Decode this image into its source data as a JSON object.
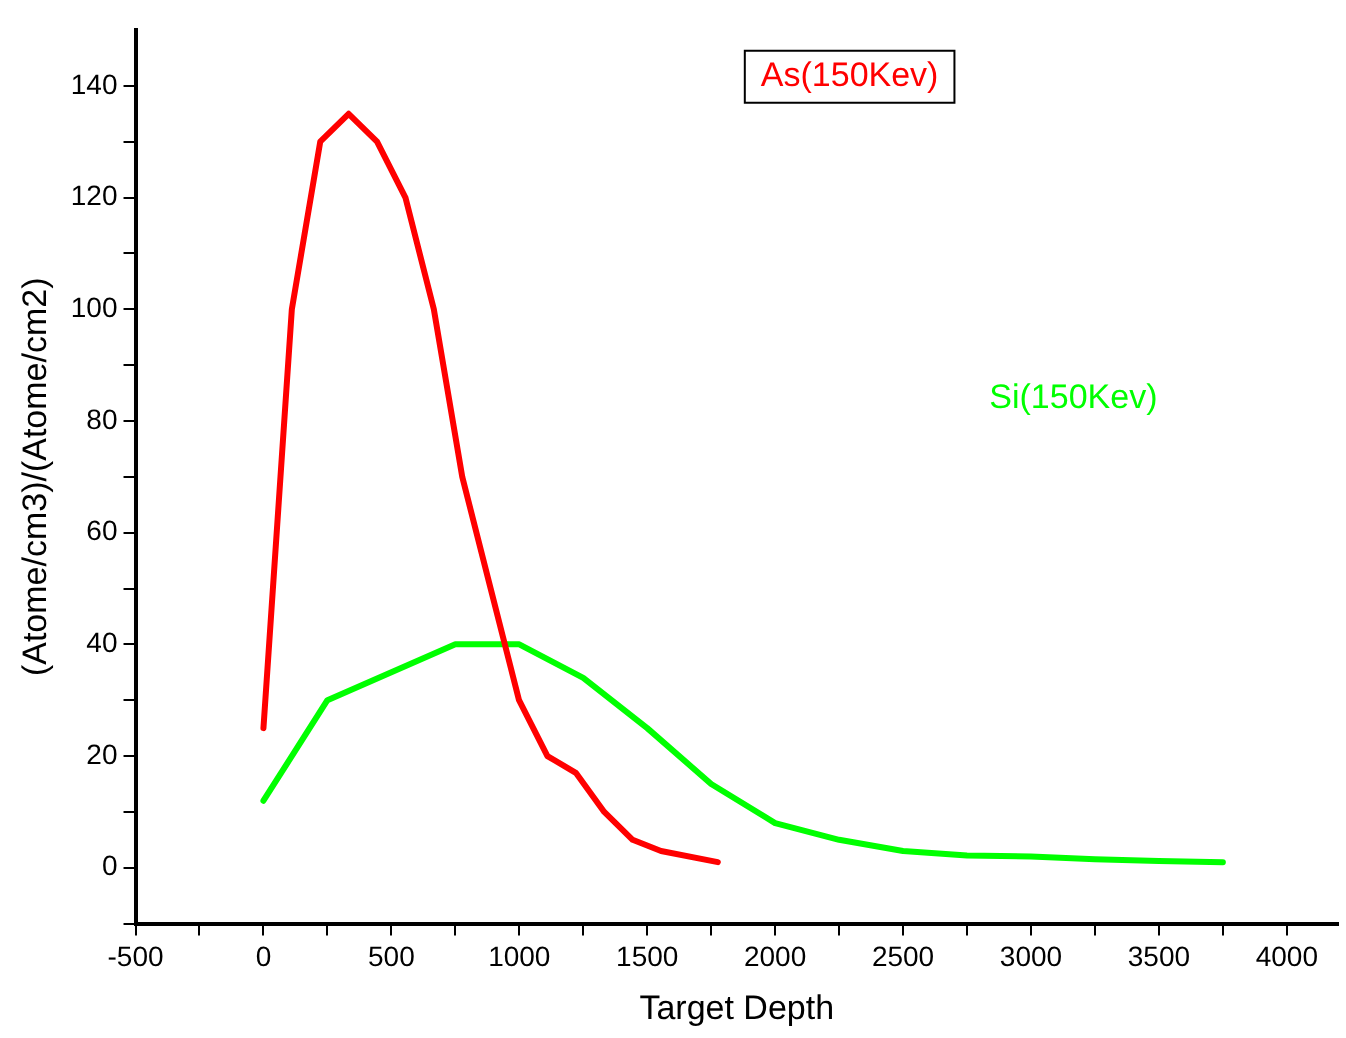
{
  "chart_data": {
    "type": "line",
    "xlabel": "Target Depth",
    "ylabel": "(Atome/cm3)/(Atome/cm2)",
    "xlim": [
      -500,
      4200
    ],
    "xticks": [
      -500,
      {
        "value": -250,
        "label": null
      },
      0,
      {
        "value": 250,
        "label": null
      },
      500,
      {
        "value": 750,
        "label": null
      },
      1000,
      {
        "value": 1250,
        "label": null
      },
      1500,
      {
        "value": 1750,
        "label": null
      },
      2000,
      {
        "value": 2250,
        "label": null
      },
      2500,
      {
        "value": 2750,
        "label": null
      },
      3000,
      {
        "value": 3250,
        "label": null
      },
      3500,
      {
        "value": 3750,
        "label": null
      },
      4000
    ],
    "ylim": [
      -10,
      150
    ],
    "yticks": [
      {
        "value": -10,
        "label": null
      },
      0,
      {
        "value": 10,
        "label": null
      },
      20,
      {
        "value": 30,
        "label": null
      },
      40,
      {
        "value": 50,
        "label": null
      },
      60,
      {
        "value": 70,
        "label": null
      },
      80,
      {
        "value": 90,
        "label": null
      },
      100,
      {
        "value": 110,
        "label": null
      },
      120,
      {
        "value": 130,
        "label": null
      },
      140
    ],
    "grid": false,
    "legend": false,
    "marker": "none",
    "line_style": "solid",
    "series": [
      {
        "name": "As(150Kev)",
        "color": "#ff0000",
        "x": [
          0,
          111,
          222,
          333,
          444,
          555,
          666,
          777,
          888,
          999,
          1110,
          1221,
          1332,
          1443,
          1554,
          1776
        ],
        "values": [
          25,
          100,
          130,
          135,
          130,
          120,
          100,
          70,
          50,
          30,
          20,
          17,
          10,
          5,
          3,
          1
        ]
      },
      {
        "name": "Si(150Kev)",
        "color": "#00ff00",
        "x": [
          0,
          250,
          750,
          1000,
          1250,
          1500,
          1750,
          2000,
          2250,
          2500,
          2750,
          3000,
          3250,
          3500,
          3750
        ],
        "values": [
          12,
          30,
          40,
          40,
          34,
          25,
          15,
          8,
          5,
          3,
          2.2,
          2,
          1.5,
          1.2,
          1
        ]
      }
    ]
  }
}
